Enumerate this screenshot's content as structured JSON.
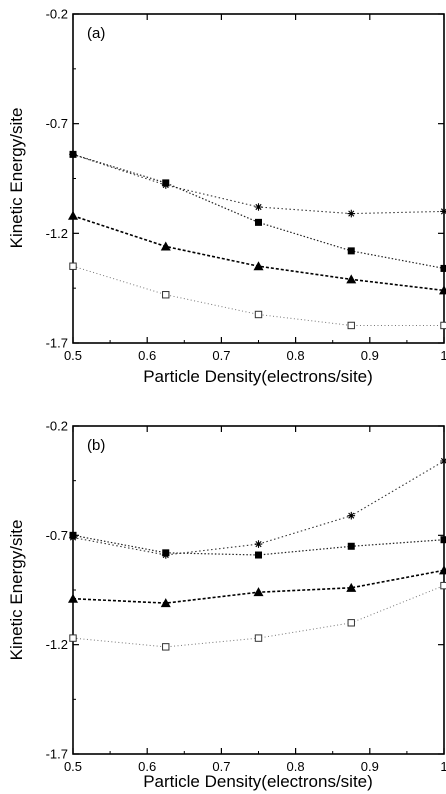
{
  "chart_data": [
    {
      "type": "line",
      "panel_label": "(a)",
      "xlabel": "Particle Density(electrons/site)",
      "ylabel": "Kinetic Energy/site",
      "xlim": [
        0.5,
        1
      ],
      "ylim": [
        -1.7,
        -0.2
      ],
      "x_ticks": [
        "0.5",
        "0.6",
        "0.7",
        "0.8",
        "0.9",
        "1"
      ],
      "y_ticks": [
        "-0.2",
        "-0.7",
        "-1.2",
        "-1.7"
      ],
      "grid": false,
      "legend": "none",
      "x": [
        0.5,
        0.625,
        0.75,
        0.875,
        1.0
      ],
      "series": [
        {
          "marker": "star",
          "line": "dotted",
          "values": [
            -0.84,
            -0.98,
            -1.08,
            -1.11,
            -1.1
          ]
        },
        {
          "marker": "filled-square",
          "line": "dotted",
          "values": [
            -0.84,
            -0.97,
            -1.15,
            -1.28,
            -1.36
          ]
        },
        {
          "marker": "filled-triangle",
          "line": "dashed",
          "values": [
            -1.12,
            -1.26,
            -1.35,
            -1.41,
            -1.46
          ]
        },
        {
          "marker": "open-square",
          "line": "dotted",
          "values": [
            -1.35,
            -1.48,
            -1.57,
            -1.62,
            -1.62
          ]
        }
      ]
    },
    {
      "type": "line",
      "panel_label": "(b)",
      "xlabel": "Particle Density(electrons/site)",
      "ylabel": "Kinetic Energy/site",
      "xlim": [
        0.5,
        1
      ],
      "ylim": [
        -1.7,
        -0.2
      ],
      "x_ticks": [
        "0.5",
        "0.6",
        "0.7",
        "0.8",
        "0.9",
        "1"
      ],
      "y_ticks": [
        "-0.2",
        "-0.7",
        "-1.2",
        "-1.7"
      ],
      "grid": false,
      "legend": "none",
      "x": [
        0.5,
        0.625,
        0.75,
        0.875,
        1.0
      ],
      "series": [
        {
          "marker": "star",
          "line": "dotted",
          "values": [
            -0.71,
            -0.79,
            -0.74,
            -0.61,
            -0.36
          ]
        },
        {
          "marker": "filled-square",
          "line": "dotted",
          "values": [
            -0.7,
            -0.78,
            -0.79,
            -0.75,
            -0.72
          ]
        },
        {
          "marker": "filled-triangle",
          "line": "dashed",
          "values": [
            -0.99,
            -1.01,
            -0.96,
            -0.94,
            -0.86
          ]
        },
        {
          "marker": "open-square",
          "line": "dotted",
          "values": [
            -1.17,
            -1.21,
            -1.17,
            -1.1,
            -0.93
          ]
        }
      ]
    }
  ]
}
